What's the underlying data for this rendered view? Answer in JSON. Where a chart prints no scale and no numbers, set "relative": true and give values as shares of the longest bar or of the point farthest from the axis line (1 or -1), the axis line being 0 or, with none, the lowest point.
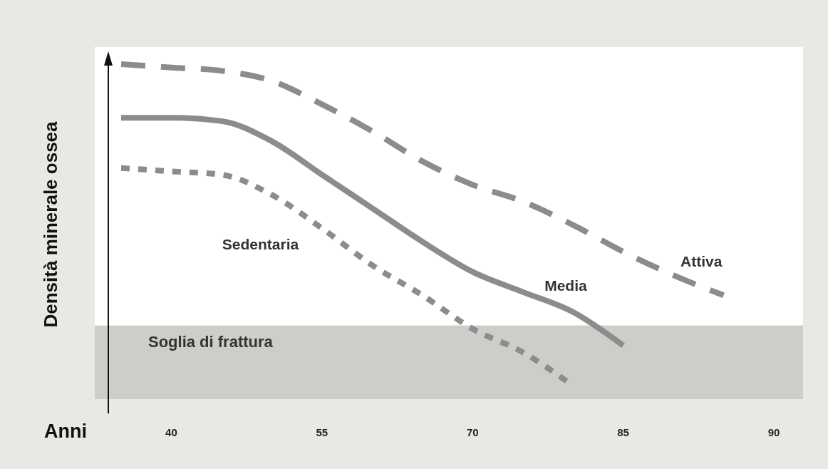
{
  "chart_data": {
    "type": "line",
    "relative": true,
    "xlabel": "Anni",
    "ylabel": "Densità minerale ossea",
    "categories": [
      null,
      "40",
      null,
      null,
      "55",
      null,
      null,
      "70",
      null,
      null,
      "85",
      null,
      null,
      "90"
    ],
    "series": [
      {
        "name": "Attiva",
        "color": "#8c8c8c",
        "line_style": "dashed",
        "values": [
          1.0,
          0.99,
          0.98,
          0.95,
          0.88,
          0.8,
          0.71,
          0.64,
          0.59,
          0.52,
          0.44,
          0.37,
          0.31,
          null
        ]
      },
      {
        "name": "Media",
        "color": "#8c8c8c",
        "line_style": "solid",
        "values": [
          0.84,
          0.84,
          0.83,
          0.77,
          0.67,
          0.57,
          0.47,
          0.38,
          0.32,
          0.26,
          0.16,
          null,
          null,
          null
        ]
      },
      {
        "name": "Sedentaria",
        "color": "#8c8c8c",
        "line_style": "dotted",
        "values": [
          0.69,
          0.68,
          0.67,
          0.61,
          0.51,
          0.4,
          0.31,
          0.21,
          0.14,
          0.04,
          null,
          null,
          null,
          null
        ]
      }
    ],
    "bands": [
      {
        "axis": "y",
        "from": 0,
        "to": 0.22,
        "label": "Soglia di frattura",
        "color": "#cfcdca"
      }
    ],
    "legend": false,
    "marker": "none"
  }
}
